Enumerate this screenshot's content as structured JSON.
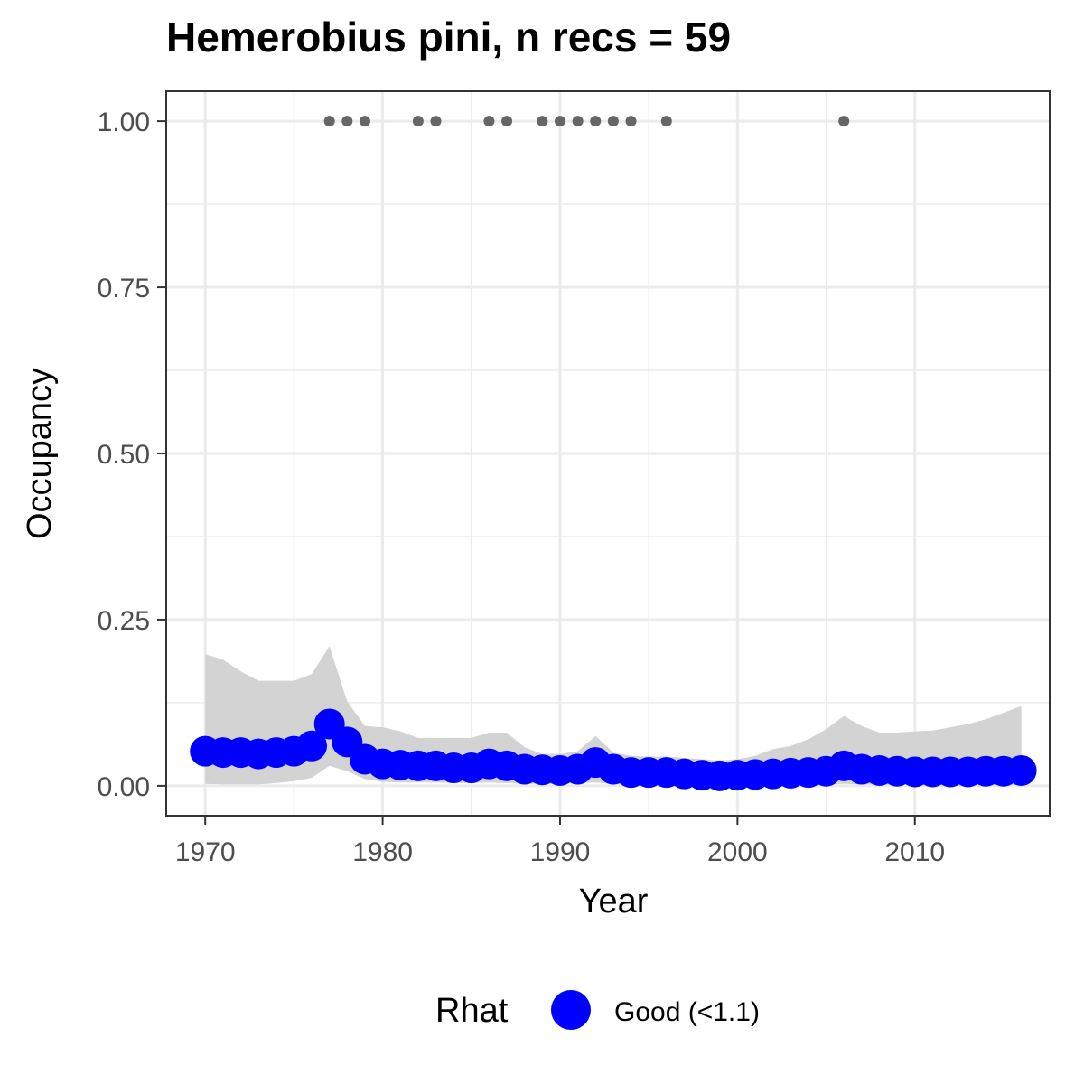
{
  "chart_data": {
    "type": "line",
    "title": "Hemerobius pini, n recs = 59",
    "xlabel": "Year",
    "ylabel": "Occupancy",
    "xlim": [
      1967.8,
      2017.6
    ],
    "ylim": [
      -0.045,
      1.045
    ],
    "x_ticks": [
      1970,
      1980,
      1990,
      2000,
      2010
    ],
    "x_tick_labels": [
      "1970",
      "1980",
      "1990",
      "2000",
      "2010"
    ],
    "y_ticks": [
      0,
      0.25,
      0.5,
      0.75,
      1.0
    ],
    "y_tick_labels": [
      "0.00",
      "0.25",
      "0.50",
      "0.75",
      "1.00"
    ],
    "grid": true,
    "legend": {
      "title": "Rhat",
      "position": "bottom",
      "entries": [
        {
          "label": "Good (<1.1)",
          "color": "#0000ff"
        }
      ]
    },
    "colors": {
      "series": "#0000ff",
      "band": "#d3d3d3",
      "records": "#666666",
      "grid": "#ebebeb",
      "panel_border": "#333333"
    },
    "series": [
      {
        "x": [
          1970,
          1971,
          1972,
          1973,
          1974,
          1975,
          1976,
          1977,
          1978,
          1979,
          1980,
          1981,
          1982,
          1983,
          1984,
          1985,
          1986,
          1987,
          1988,
          1989,
          1990,
          1991,
          1992,
          1993,
          1994,
          1995,
          1996,
          1997,
          1998,
          1999,
          2000,
          2001,
          2002,
          2003,
          2004,
          2005,
          2006,
          2007,
          2008,
          2009,
          2010,
          2011,
          2012,
          2013,
          2014,
          2015,
          2016
        ],
        "values": [
          0.052,
          0.05,
          0.05,
          0.048,
          0.05,
          0.052,
          0.06,
          0.093,
          0.066,
          0.04,
          0.033,
          0.031,
          0.03,
          0.03,
          0.027,
          0.027,
          0.033,
          0.03,
          0.025,
          0.024,
          0.023,
          0.025,
          0.035,
          0.025,
          0.02,
          0.02,
          0.02,
          0.018,
          0.016,
          0.015,
          0.016,
          0.017,
          0.018,
          0.019,
          0.02,
          0.022,
          0.03,
          0.025,
          0.023,
          0.022,
          0.021,
          0.021,
          0.021,
          0.021,
          0.022,
          0.022,
          0.023
        ],
        "lower": [
          0.003,
          0.002,
          0.002,
          0.002,
          0.004,
          0.007,
          0.012,
          0.03,
          0.022,
          0.01,
          0.006,
          0.005,
          0.005,
          0.005,
          0.004,
          0.004,
          0.005,
          0.004,
          0.003,
          0.003,
          0.003,
          0.004,
          0.005,
          0.003,
          0.002,
          0.002,
          0.002,
          0.001,
          0.001,
          0.001,
          0.001,
          0.001,
          0.001,
          0.001,
          0.001,
          0.002,
          0.003,
          0.002,
          0.002,
          0.002,
          0.001,
          0.001,
          0.001,
          0.001,
          0.001,
          0.001,
          0.001
        ],
        "upper": [
          0.198,
          0.19,
          0.172,
          0.158,
          0.158,
          0.158,
          0.168,
          0.21,
          0.127,
          0.09,
          0.088,
          0.082,
          0.072,
          0.072,
          0.072,
          0.072,
          0.08,
          0.08,
          0.058,
          0.048,
          0.048,
          0.052,
          0.075,
          0.05,
          0.045,
          0.044,
          0.044,
          0.042,
          0.04,
          0.038,
          0.04,
          0.045,
          0.055,
          0.06,
          0.07,
          0.085,
          0.105,
          0.09,
          0.08,
          0.08,
          0.082,
          0.083,
          0.088,
          0.093,
          0.1,
          0.11,
          0.12
        ]
      }
    ],
    "records": {
      "x": [
        1977,
        1978,
        1979,
        1982,
        1983,
        1986,
        1987,
        1989,
        1990,
        1991,
        1992,
        1993,
        1994,
        1996,
        2006
      ],
      "y": [
        1,
        1,
        1,
        1,
        1,
        1,
        1,
        1,
        1,
        1,
        1,
        1,
        1,
        1,
        1
      ]
    }
  }
}
